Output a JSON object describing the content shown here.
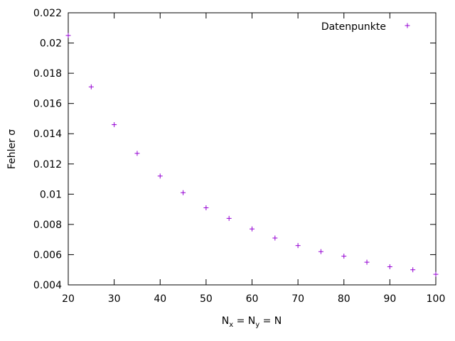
{
  "chart_data": {
    "type": "scatter",
    "xlabel": {
      "base1": "N",
      "sub1": "x",
      "mid": " = N",
      "sub2": "y",
      "tail": " = N"
    },
    "ylabel": "Fehler σ",
    "xlim": [
      20,
      100
    ],
    "ylim": [
      0.004,
      0.022
    ],
    "xticks": [
      20,
      30,
      40,
      50,
      60,
      70,
      80,
      90,
      100
    ],
    "yticks": [
      0.004,
      0.006,
      0.008,
      0.01,
      0.012,
      0.014,
      0.016,
      0.018,
      0.02,
      0.022
    ],
    "xtick_labels": [
      "20",
      "30",
      "40",
      "50",
      "60",
      "70",
      "80",
      "90",
      "100"
    ],
    "ytick_labels": [
      "0.004",
      "0.006",
      "0.008",
      "0.01",
      "0.012",
      "0.014",
      "0.016",
      "0.018",
      "0.02",
      "0.022"
    ],
    "grid": false,
    "legend_position": "top-right",
    "series": [
      {
        "name": "Datenpunkte",
        "color": "#9400d3",
        "marker": "plus",
        "x": [
          20,
          25,
          30,
          35,
          40,
          45,
          50,
          55,
          60,
          65,
          70,
          75,
          80,
          85,
          90,
          95,
          100
        ],
        "y": [
          0.0205,
          0.0171,
          0.0146,
          0.0127,
          0.0112,
          0.0101,
          0.0091,
          0.0084,
          0.0077,
          0.0071,
          0.0066,
          0.0062,
          0.0059,
          0.0055,
          0.0052,
          0.005,
          0.0047
        ]
      }
    ]
  }
}
